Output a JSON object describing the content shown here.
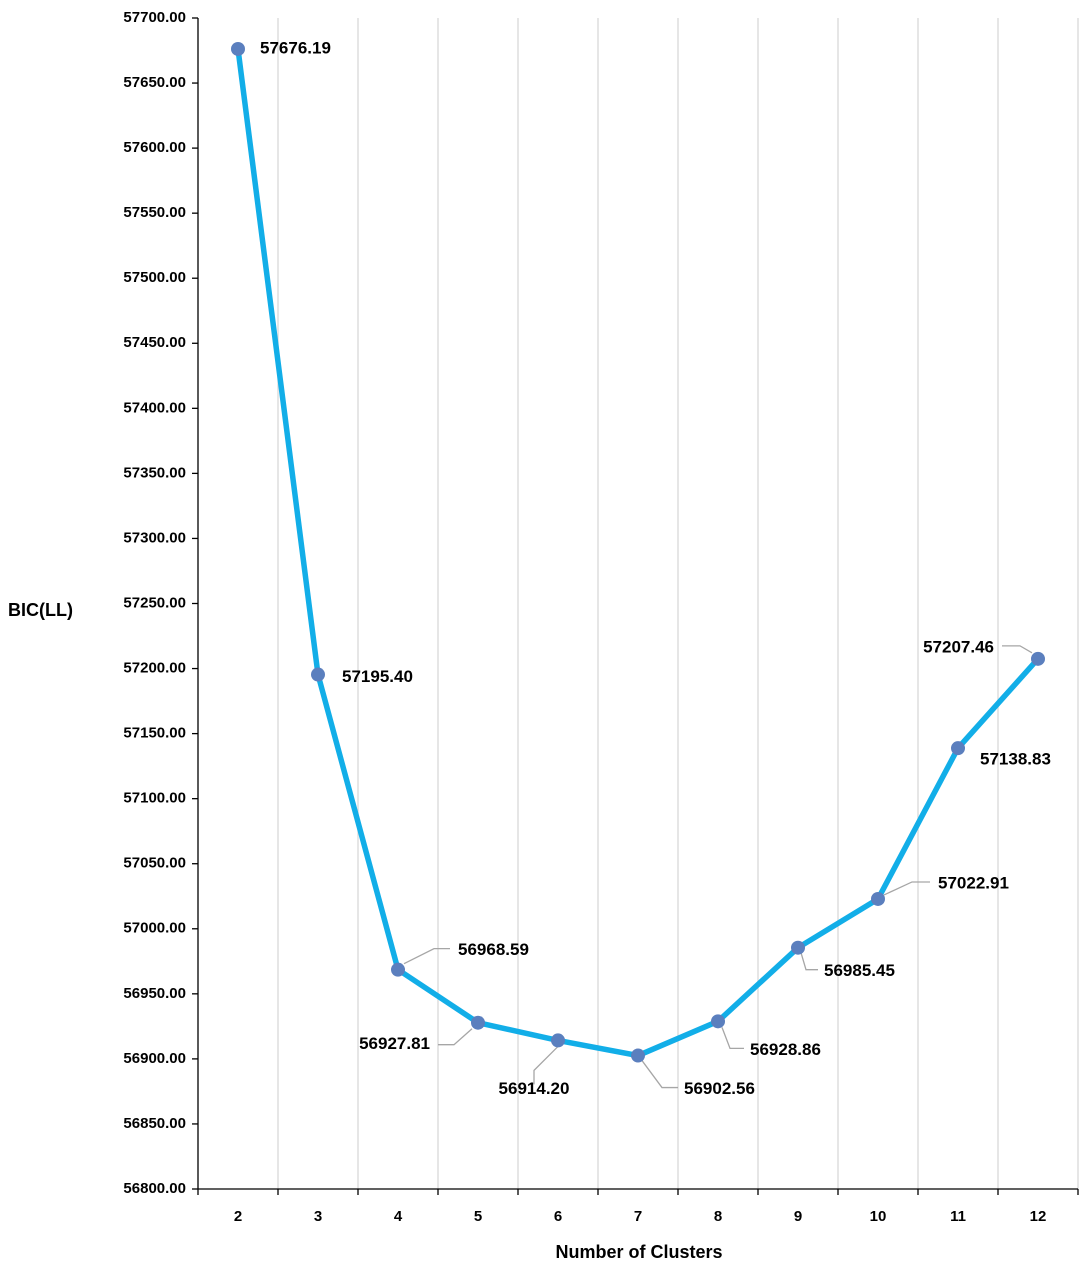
{
  "chart_data": {
    "type": "line",
    "title": "",
    "xlabel": "Number of Clusters",
    "ylabel": "BIC(LL)",
    "categories": [
      "2",
      "3",
      "4",
      "5",
      "6",
      "7",
      "8",
      "9",
      "10",
      "11",
      "12"
    ],
    "series": [
      {
        "values": [
          57676.19,
          57195.4,
          56968.59,
          56927.81,
          56914.2,
          56902.56,
          56928.86,
          56985.45,
          57022.91,
          57138.83,
          57207.46
        ],
        "data_labels": [
          "57676.19",
          "57195.40",
          "56968.59",
          "56927.81",
          "56914.20",
          "56902.56",
          "56928.86",
          "56985.45",
          "57022.91",
          "57138.83",
          "57207.46"
        ]
      }
    ],
    "ylim": [
      56800,
      57700
    ],
    "y_ticks": [
      "56800.00",
      "56850.00",
      "56900.00",
      "56950.00",
      "57000.00",
      "57050.00",
      "57100.00",
      "57150.00",
      "57200.00",
      "57250.00",
      "57300.00",
      "57350.00",
      "57400.00",
      "57450.00",
      "57500.00",
      "57550.00",
      "57600.00",
      "57650.00",
      "57700.00"
    ],
    "grid": "vertical",
    "legend": "none",
    "colors": {
      "line": "#12AEE8",
      "marker": "#5B7FBE",
      "grid": "#D9D9D9",
      "axis": "#000000",
      "leader": "#A6A6A6"
    }
  }
}
